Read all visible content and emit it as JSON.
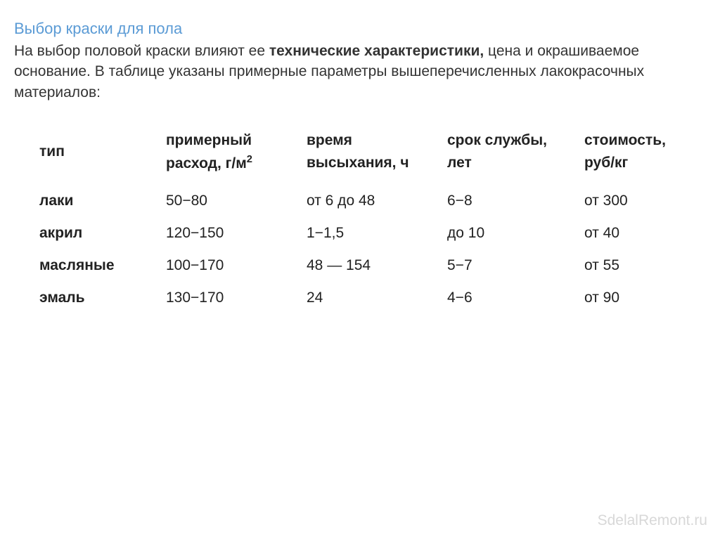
{
  "title": "Выбор краски для пола",
  "intro": {
    "pre": "На выбор половой краски влияют ее ",
    "bold": "технические характеристики,",
    "post": " цена и окрашиваемое основание. В таблице указаны примерные параметры вышеперечисленных лакокрасочных материалов:"
  },
  "table": {
    "headers": {
      "type": "тип",
      "consumption_line1": "примерный",
      "consumption_line2": "расход, г/м",
      "consumption_sup": "2",
      "drytime_line1": "время",
      "drytime_line2": "высыхания, ч",
      "lifetime_line1": "срок службы,",
      "lifetime_line2": "лет",
      "cost_line1": "стоимость,",
      "cost_line2": "руб/кг"
    },
    "rows": [
      {
        "type": "лаки",
        "consumption": "50−80",
        "drytime": "от 6 до 48",
        "lifetime": "6−8",
        "cost": "от 300"
      },
      {
        "type": "акрил",
        "consumption": "120−150",
        "drytime": "1−1,5",
        "lifetime": "до 10",
        "cost": "от 40"
      },
      {
        "type": "масляные",
        "consumption": "100−170",
        "drytime": "48 — 154",
        "lifetime": "5−7",
        "cost": "от 55"
      },
      {
        "type": "эмаль",
        "consumption": "130−170",
        "drytime": "24",
        "lifetime": "4−6",
        "cost": "от 90"
      }
    ]
  },
  "watermark": "SdelalRemont.ru",
  "colors": {
    "title": "#5b9bd5",
    "text": "#333333",
    "watermark": "#d8d8d8",
    "background": "#ffffff"
  }
}
